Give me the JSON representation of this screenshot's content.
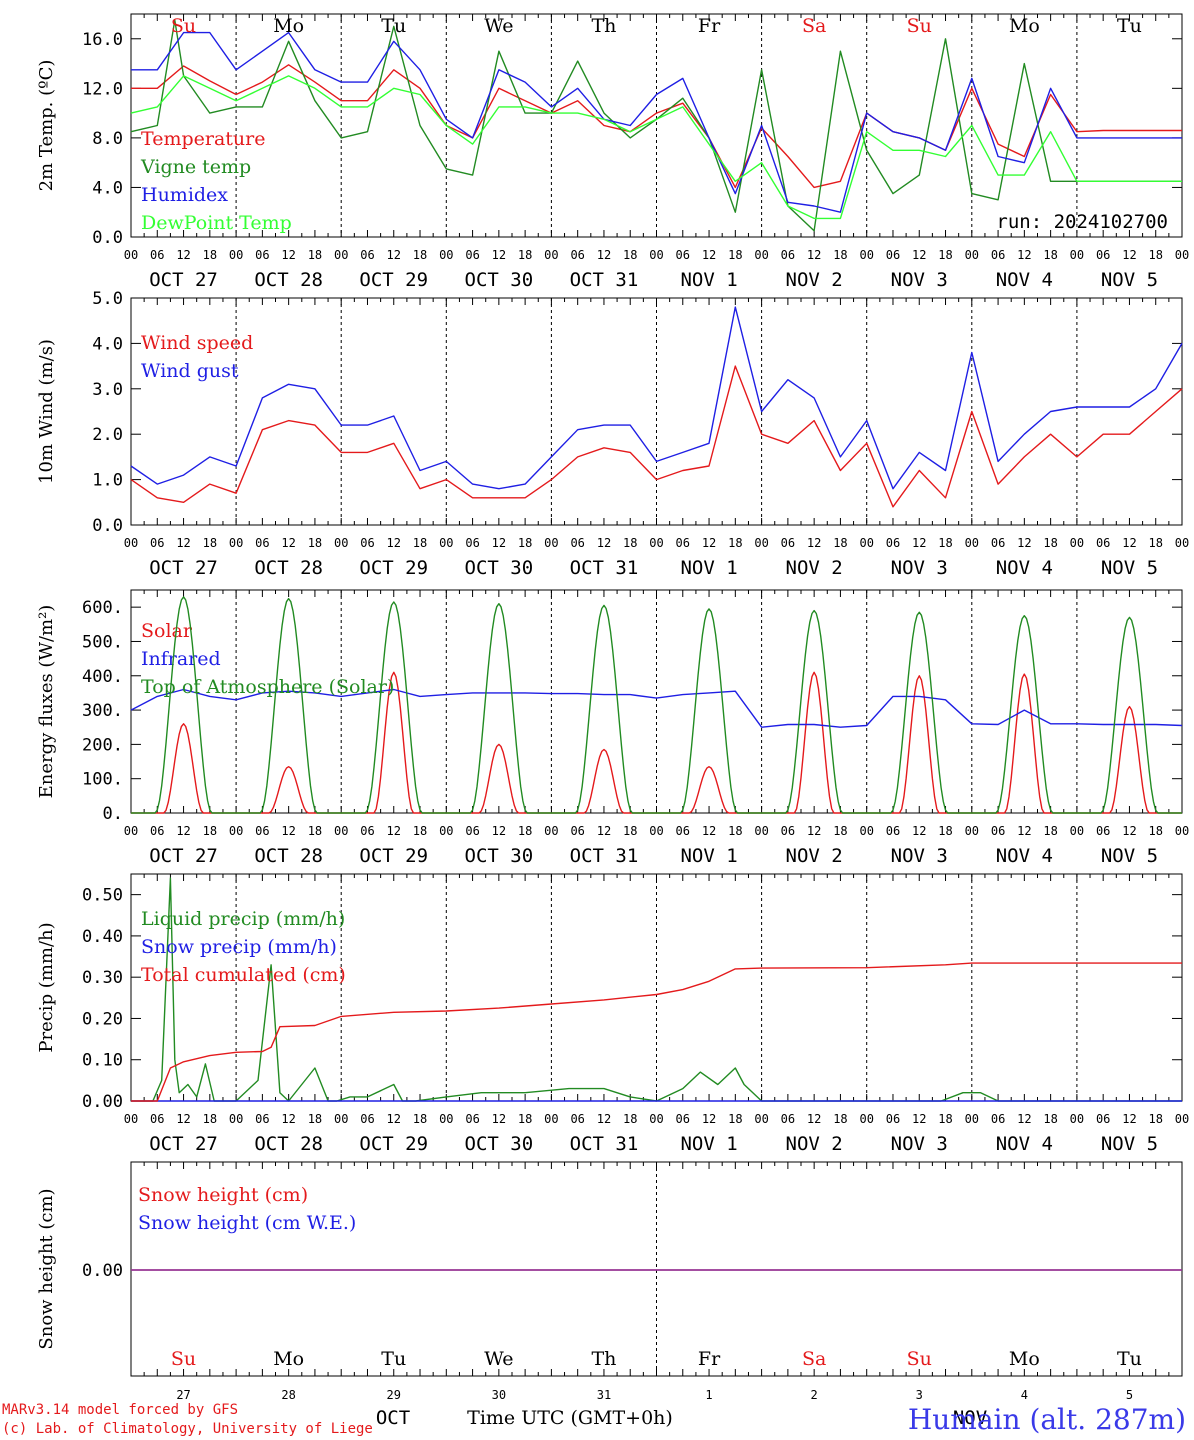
{
  "run_label": "run: 2024102700",
  "station": "Humain (alt. 287m)",
  "footer": {
    "line1": "MARv3.14 model forced by GFS",
    "line2": "(c) Lab. of Climatology, University of Liege",
    "month": "OCT",
    "month2": "NOV",
    "time_label": "Time UTC (GMT+0h)"
  },
  "hour_labels": [
    "00",
    "06",
    "12",
    "18"
  ],
  "date_labels": [
    "OCT 27",
    "OCT 28",
    "OCT 29",
    "OCT 30",
    "OCT 31",
    "NOV  1",
    "NOV  2",
    "NOV  3",
    "NOV  4",
    "NOV  5"
  ],
  "day_numbers": [
    "27",
    "28",
    "29",
    "30",
    "31",
    "1",
    "2",
    "3",
    "4",
    "5"
  ],
  "weekdays": [
    {
      "label": "Su",
      "color": "#e41a1c"
    },
    {
      "label": "Mo",
      "color": "#000000"
    },
    {
      "label": "Tu",
      "color": "#000000"
    },
    {
      "label": "We",
      "color": "#000000"
    },
    {
      "label": "Th",
      "color": "#000000"
    },
    {
      "label": "Fr",
      "color": "#000000"
    },
    {
      "label": "Sa",
      "color": "#e41a1c"
    },
    {
      "label": "Su",
      "color": "#e41a1c"
    },
    {
      "label": "Mo",
      "color": "#000000"
    },
    {
      "label": "Tu",
      "color": "#000000"
    }
  ],
  "chart_data": [
    {
      "type": "line",
      "ylabel": "2m Temp. (ºC)",
      "ylim": [
        0,
        18
      ],
      "yticks": [
        "0.0",
        "4.0",
        "8.0",
        "12.0",
        "16.0"
      ],
      "yticks_values": [
        0,
        4,
        8,
        12,
        16
      ],
      "x_unit": "hours since OCT 27 00 UTC",
      "series": [
        {
          "name": "Temperature",
          "color": "#e41a1c",
          "x": [
            0,
            6,
            12,
            18,
            24,
            30,
            36,
            42,
            48,
            54,
            60,
            66,
            72,
            78,
            84,
            90,
            96,
            102,
            108,
            114,
            120,
            126,
            132,
            138,
            144,
            150,
            156,
            162,
            168,
            174,
            180,
            186,
            192,
            198,
            204,
            210,
            216,
            222,
            228,
            234,
            240
          ],
          "y": [
            12.0,
            12.0,
            13.8,
            12.6,
            11.5,
            12.5,
            13.9,
            12.5,
            11.0,
            11.0,
            13.5,
            12.0,
            9.0,
            8.0,
            12.0,
            11.0,
            10.0,
            11.0,
            9.0,
            8.5,
            10.0,
            10.8,
            8.0,
            4.0,
            8.8,
            6.5,
            4.0,
            4.5,
            10.0,
            8.5,
            8.0,
            7.0,
            12.0,
            7.5,
            6.5,
            11.5,
            8.5,
            8.6,
            8.6,
            8.6,
            8.6
          ]
        },
        {
          "name": "Vigne temp",
          "color": "#228b22",
          "x": [
            0,
            6,
            10,
            12,
            18,
            24,
            30,
            36,
            42,
            48,
            54,
            60,
            66,
            72,
            78,
            84,
            90,
            96,
            102,
            108,
            114,
            120,
            126,
            132,
            138,
            144,
            150,
            156,
            162,
            168,
            174,
            180,
            186,
            192,
            198,
            204,
            210,
            216,
            222,
            228,
            234,
            240
          ],
          "y": [
            8.5,
            9.0,
            17.5,
            13.0,
            10.0,
            10.5,
            10.5,
            15.8,
            11.0,
            8.0,
            8.5,
            17.0,
            9.0,
            5.5,
            5.0,
            15.0,
            10.0,
            10.0,
            14.2,
            10.0,
            8.0,
            9.5,
            11.2,
            8.0,
            2.0,
            13.5,
            2.5,
            0.5,
            15.0,
            7.0,
            3.5,
            5.0,
            16.0,
            3.5,
            3.0,
            14.0,
            4.5,
            4.5,
            4.5,
            4.5,
            4.5,
            4.5
          ]
        },
        {
          "name": "Humidex",
          "color": "#1f1fe4",
          "x": [
            0,
            6,
            12,
            18,
            24,
            30,
            36,
            42,
            48,
            54,
            60,
            66,
            72,
            78,
            84,
            90,
            96,
            102,
            108,
            114,
            120,
            126,
            132,
            138,
            144,
            150,
            156,
            162,
            168,
            174,
            180,
            186,
            192,
            198,
            204,
            210,
            216,
            222,
            228,
            234,
            240
          ],
          "y": [
            13.5,
            13.5,
            16.5,
            16.5,
            13.5,
            15.0,
            16.5,
            13.5,
            12.5,
            12.5,
            15.8,
            13.5,
            9.5,
            8.0,
            13.5,
            12.5,
            10.5,
            12.0,
            9.5,
            9.0,
            11.5,
            12.8,
            8.0,
            3.5,
            9.0,
            2.8,
            2.5,
            2.0,
            10.0,
            8.5,
            8.0,
            7.0,
            12.8,
            6.5,
            6.0,
            12.0,
            8.0,
            8.0,
            8.0,
            8.0,
            8.0
          ]
        },
        {
          "name": "DewPoint Temp",
          "color": "#33ff33",
          "x": [
            0,
            6,
            12,
            18,
            24,
            30,
            36,
            42,
            48,
            54,
            60,
            66,
            72,
            78,
            84,
            90,
            96,
            102,
            108,
            114,
            120,
            126,
            132,
            138,
            144,
            150,
            156,
            162,
            168,
            174,
            180,
            186,
            192,
            198,
            204,
            210,
            216,
            222,
            228,
            234,
            240
          ],
          "y": [
            10.0,
            10.5,
            13.0,
            12.0,
            11.0,
            12.0,
            13.0,
            12.0,
            10.5,
            10.5,
            12.0,
            11.5,
            9.0,
            7.5,
            10.5,
            10.5,
            10.0,
            10.0,
            9.5,
            8.5,
            9.5,
            10.5,
            7.5,
            4.5,
            6.0,
            2.5,
            1.5,
            1.5,
            8.5,
            7.0,
            7.0,
            6.5,
            9.0,
            5.0,
            5.0,
            8.5,
            4.5,
            4.5,
            4.5,
            4.5,
            4.5
          ]
        }
      ]
    },
    {
      "type": "line",
      "ylabel": "10m Wind (m/s)",
      "ylim": [
        0,
        5
      ],
      "yticks": [
        "0.0",
        "1.0",
        "2.0",
        "3.0",
        "4.0",
        "5.0"
      ],
      "yticks_values": [
        0,
        1,
        2,
        3,
        4,
        5
      ],
      "series": [
        {
          "name": "Wind speed",
          "color": "#e41a1c",
          "x": [
            0,
            6,
            12,
            18,
            24,
            30,
            36,
            42,
            48,
            54,
            60,
            66,
            72,
            78,
            84,
            90,
            96,
            102,
            108,
            114,
            120,
            126,
            132,
            138,
            144,
            150,
            156,
            162,
            168,
            174,
            180,
            186,
            192,
            198,
            204,
            210,
            216,
            222,
            228,
            234,
            240
          ],
          "y": [
            1.0,
            0.6,
            0.5,
            0.9,
            0.7,
            2.1,
            2.3,
            2.2,
            1.6,
            1.6,
            1.8,
            0.8,
            1.0,
            0.6,
            0.6,
            0.6,
            1.0,
            1.5,
            1.7,
            1.6,
            1.0,
            1.2,
            1.3,
            3.5,
            2.0,
            1.8,
            2.3,
            1.2,
            1.8,
            0.4,
            1.2,
            0.6,
            2.5,
            0.9,
            1.5,
            2.0,
            1.5,
            2.0,
            2.0,
            2.5,
            3.0
          ]
        },
        {
          "name": "Wind gust",
          "color": "#1f1fe4",
          "x": [
            0,
            6,
            12,
            18,
            24,
            30,
            36,
            42,
            48,
            54,
            60,
            66,
            72,
            78,
            84,
            90,
            96,
            102,
            108,
            114,
            120,
            126,
            132,
            138,
            144,
            150,
            156,
            162,
            168,
            174,
            180,
            186,
            192,
            198,
            204,
            210,
            216,
            222,
            228,
            234,
            240
          ],
          "y": [
            1.3,
            0.9,
            1.1,
            1.5,
            1.3,
            2.8,
            3.1,
            3.0,
            2.2,
            2.2,
            2.4,
            1.2,
            1.4,
            0.9,
            0.8,
            0.9,
            1.5,
            2.1,
            2.2,
            2.2,
            1.4,
            1.6,
            1.8,
            4.8,
            2.5,
            3.2,
            2.8,
            1.5,
            2.3,
            0.8,
            1.6,
            1.2,
            3.8,
            1.4,
            2.0,
            2.5,
            2.6,
            2.6,
            2.6,
            3.0,
            4.0
          ]
        }
      ]
    },
    {
      "type": "line",
      "ylabel": "Energy fluxes (W/m²)",
      "ylim": [
        0,
        650
      ],
      "yticks": [
        "0.",
        "100.",
        "200.",
        "300.",
        "400.",
        "500.",
        "600."
      ],
      "yticks_values": [
        0,
        100,
        200,
        300,
        400,
        500,
        600
      ],
      "series": [
        {
          "name": "Solar",
          "color": "#e41a1c",
          "peaks": [
            260,
            135,
            410,
            200,
            185,
            135,
            410,
            400,
            405,
            310
          ]
        },
        {
          "name": "Infrared",
          "color": "#1f1fe4",
          "x": [
            0,
            6,
            12,
            18,
            24,
            30,
            36,
            42,
            48,
            54,
            60,
            66,
            72,
            78,
            84,
            90,
            96,
            102,
            108,
            114,
            120,
            126,
            132,
            138,
            144,
            150,
            156,
            162,
            168,
            174,
            180,
            186,
            192,
            198,
            204,
            210,
            216,
            222,
            228,
            234,
            240
          ],
          "y": [
            300,
            340,
            360,
            340,
            330,
            350,
            355,
            350,
            340,
            350,
            360,
            340,
            345,
            350,
            350,
            350,
            348,
            348,
            345,
            345,
            335,
            345,
            350,
            355,
            250,
            258,
            258,
            250,
            255,
            340,
            340,
            330,
            260,
            258,
            300,
            260,
            260,
            258,
            258,
            258,
            255
          ]
        },
        {
          "name": "Top of Atmosphere (Solar)",
          "color": "#228b22",
          "peaks": [
            630,
            625,
            615,
            610,
            605,
            595,
            590,
            585,
            575,
            570
          ]
        }
      ]
    },
    {
      "type": "line",
      "ylabel": "Precip (mm/h)",
      "ylim": [
        0,
        0.55
      ],
      "yticks": [
        "0.00",
        "0.10",
        "0.20",
        "0.30",
        "0.40",
        "0.50"
      ],
      "yticks_values": [
        0,
        0.1,
        0.2,
        0.3,
        0.4,
        0.5
      ],
      "series": [
        {
          "name": "Liquid precip (mm/h)",
          "color": "#228b22",
          "x": [
            0,
            5,
            7,
            9,
            10,
            11,
            13,
            15,
            17,
            19,
            24,
            29,
            32,
            34,
            36,
            42,
            45,
            47,
            50,
            54,
            60,
            62,
            65,
            72,
            80,
            90,
            100,
            108,
            114,
            120,
            126,
            130,
            134,
            138,
            140,
            144,
            185,
            190,
            194,
            198,
            240
          ],
          "y": [
            0,
            0,
            0.05,
            0.54,
            0.1,
            0.02,
            0.04,
            0.01,
            0.09,
            0.0,
            0.0,
            0.05,
            0.33,
            0.02,
            0.0,
            0.08,
            0.0,
            0.0,
            0.01,
            0.01,
            0.04,
            0.0,
            0.0,
            0.01,
            0.02,
            0.02,
            0.03,
            0.03,
            0.01,
            0.0,
            0.03,
            0.07,
            0.04,
            0.08,
            0.04,
            0.0,
            0.0,
            0.02,
            0.02,
            0.0,
            0.0
          ]
        },
        {
          "name": "Snow precip (mm/h)",
          "color": "#1f1fe4",
          "x": [
            0,
            240
          ],
          "y": [
            0,
            0
          ]
        },
        {
          "name": "Total cumulated (cm)",
          "color": "#e41a1c",
          "x": [
            0,
            6,
            9,
            12,
            18,
            24,
            30,
            32,
            34,
            42,
            48,
            60,
            72,
            84,
            96,
            108,
            120,
            126,
            132,
            138,
            144,
            168,
            186,
            192,
            240
          ],
          "y": [
            0,
            0,
            0.08,
            0.095,
            0.11,
            0.118,
            0.12,
            0.13,
            0.18,
            0.183,
            0.205,
            0.215,
            0.218,
            0.225,
            0.235,
            0.245,
            0.258,
            0.27,
            0.29,
            0.32,
            0.322,
            0.323,
            0.33,
            0.334,
            0.334
          ]
        }
      ]
    },
    {
      "type": "line",
      "ylabel": "Snow height (cm)",
      "yticks": [
        "0.00"
      ],
      "yticks_values": [
        0
      ],
      "series": [
        {
          "name": "Snow height (cm)",
          "color": "#e41a1c",
          "x": [
            0,
            240
          ],
          "y": [
            0,
            0
          ]
        },
        {
          "name": "Snow height (cm W.E.)",
          "color": "#1f1fe4",
          "x": [
            0,
            240
          ],
          "y": [
            0,
            0
          ]
        }
      ]
    }
  ]
}
